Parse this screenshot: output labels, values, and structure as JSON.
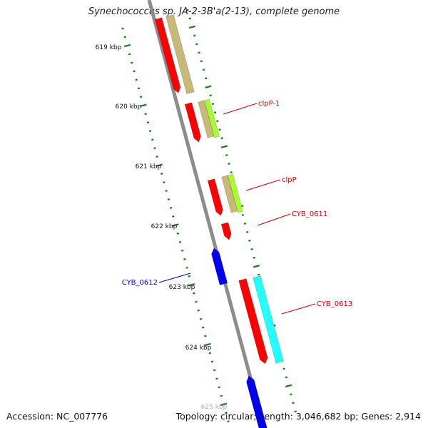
{
  "title": "Synechococcus sp. JA-2-3B'a(2-13), complete genome",
  "footer": {
    "accession": "Accession: NC_007776",
    "topology": "Topology: circular; Length: 3,046,682 bp; Genes: 2,914"
  },
  "scale": {
    "unit": "kbp",
    "labels": [
      "619 kbp",
      "620 kbp",
      "621 kbp",
      "622 kbp",
      "623 kbp",
      "624 kbp",
      "625 kbp"
    ]
  },
  "genes": [
    {
      "label": "clpP-1",
      "color": "#cc0000"
    },
    {
      "label": "clpP",
      "color": "#cc0000"
    },
    {
      "label": "CYB_0611",
      "color": "#cc0000"
    },
    {
      "label": "CYB_0612",
      "color": "#0000cc"
    },
    {
      "label": "CYB_0613",
      "color": "#cc0000"
    }
  ],
  "colors": {
    "backbone": "#8c8c8c",
    "cds_forward": "#ff0000",
    "cds_reverse": "#0000ee",
    "gene_track": "#c8b87a",
    "rna_track_1": "#a6ff2a",
    "rna_track_2": "#22ffff",
    "tick": "#1a7a1a"
  }
}
